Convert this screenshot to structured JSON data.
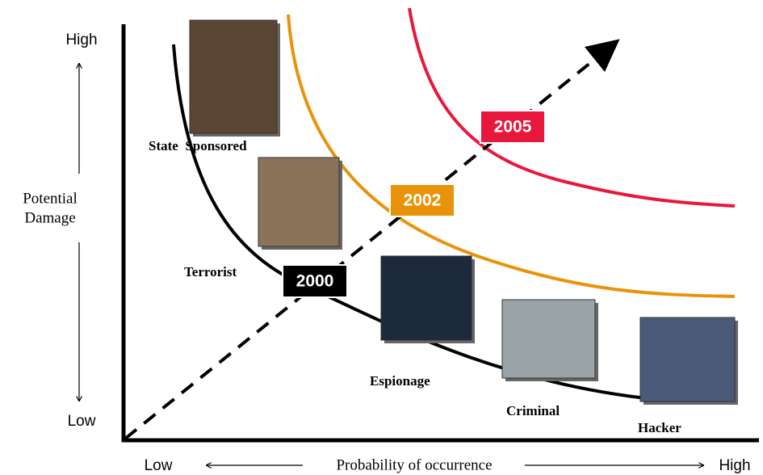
{
  "y_axis": {
    "high": "High",
    "low": "Low",
    "label": [
      "Potential",
      "Damage"
    ]
  },
  "x_axis": {
    "low": "Low",
    "label": "Probability of occurrence",
    "high": "High"
  },
  "threats": [
    {
      "label": "State  Sponsored"
    },
    {
      "label": "Terrorist"
    },
    {
      "label": "Espionage"
    },
    {
      "label": "Criminal"
    },
    {
      "label": "Hacker"
    }
  ],
  "years": [
    {
      "label": "2000"
    },
    {
      "label": "2002"
    },
    {
      "label": "2005"
    }
  ]
}
